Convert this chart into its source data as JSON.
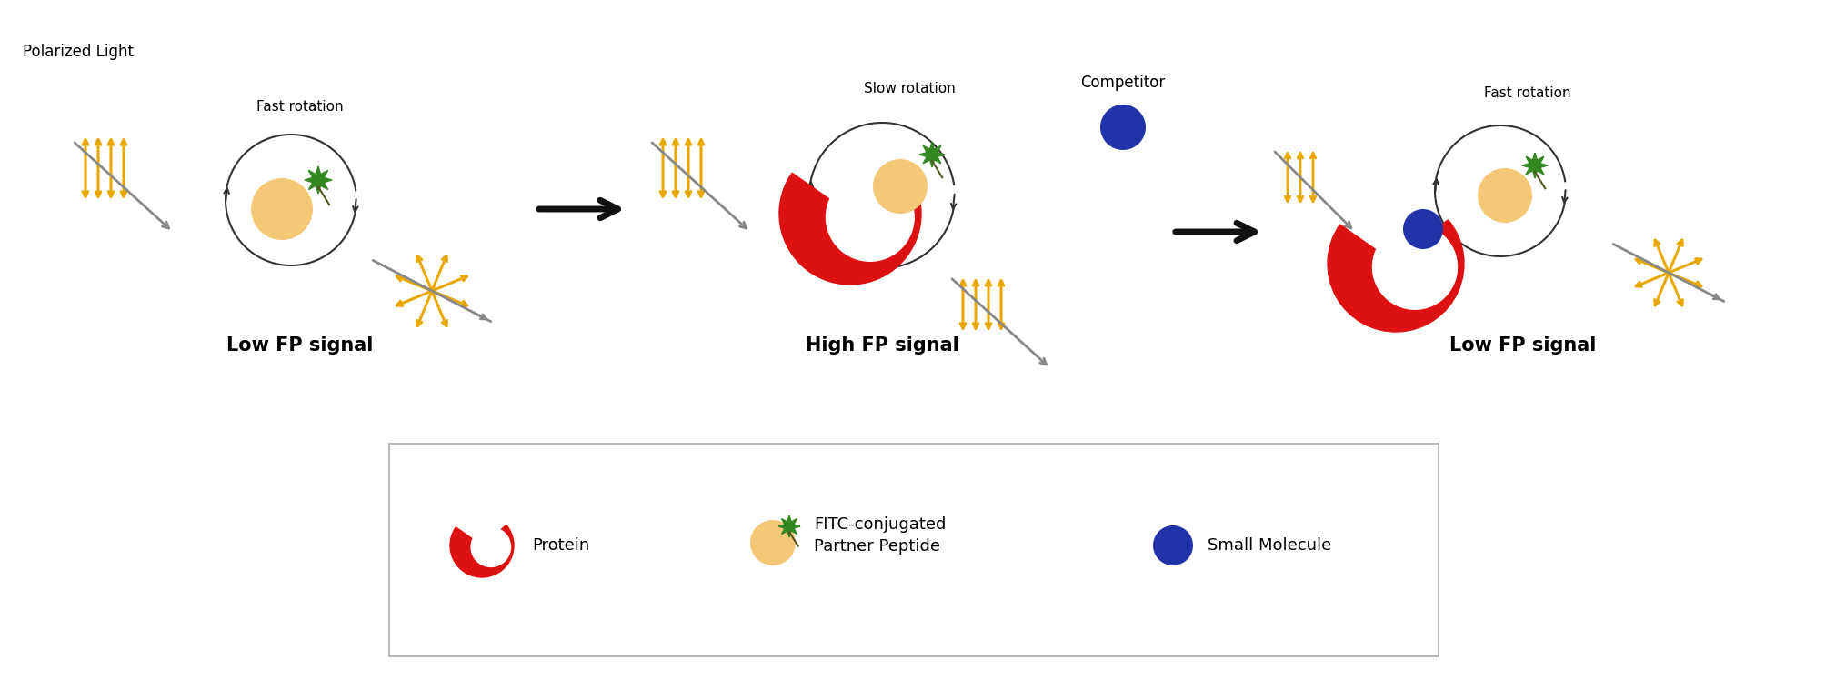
{
  "bg_color": "#ffffff",
  "panel1_label": "Low FP signal",
  "panel2_label": "High FP signal",
  "panel3_label": "Low FP signal",
  "polarized_light_label": "Polarized Light",
  "panel1_rotation_label": "Fast rotation",
  "panel2_rotation_label": "Slow rotation",
  "panel3_rotation_label": "Fast rotation",
  "competitor_label": "Competitor",
  "legend_protein": "Protein",
  "legend_fitc": "FITC-conjugated\nPartner Peptide",
  "legend_small": "Small Molecule",
  "red_color": "#dd1111",
  "peach_color": "#f5c878",
  "green_color": "#338822",
  "gold_color": "#e8a800",
  "blue_color": "#2233aa",
  "dark_color": "#222222",
  "gray_color": "#888888",
  "label_fontsize": 15,
  "sublabel_fontsize": 12,
  "rotation_fontsize": 11
}
